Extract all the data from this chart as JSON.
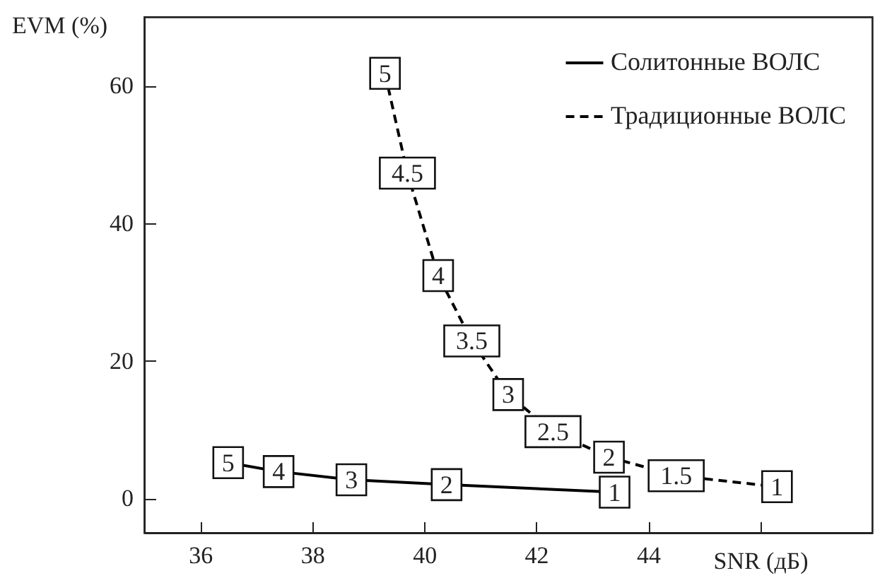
{
  "chart_data": {
    "type": "line",
    "xlabel": "SNR (дБ)",
    "ylabel": "EVM (%)",
    "xlim": [
      35,
      48
    ],
    "ylim": [
      -5,
      70
    ],
    "xticks": [
      36,
      38,
      40,
      42,
      44,
      {
        "value": 46,
        "label": null
      }
    ],
    "yticks": [
      0,
      20,
      40,
      60
    ],
    "grid": false,
    "legend": "top right",
    "marker": "square",
    "series": [
      {
        "name": "Солитонные ВОЛС",
        "color": "#000000",
        "line_style": "solid",
        "x": [
          36.5,
          37.4,
          38.7,
          40.4,
          43.4
        ],
        "values": [
          5.2,
          3.9,
          2.7,
          2.0,
          0.9
        ]
      },
      {
        "name": "Традиционные ВОЛС",
        "color": "#000000",
        "line_style": "dashed",
        "x": [
          39.3,
          39.7,
          40.25,
          40.85,
          41.5,
          42.3,
          43.3,
          44.5,
          46.3
        ],
        "values": [
          61.8,
          47.3,
          32.4,
          22.9,
          15.1,
          9.7,
          6.0,
          3.3,
          1.7
        ]
      }
    ],
    "annotations": [
      {
        "text": "5",
        "x": 36.5,
        "y": 5.2
      },
      {
        "text": "4",
        "x": 37.4,
        "y": 3.9
      },
      {
        "text": "3",
        "x": 38.7,
        "y": 2.7
      },
      {
        "text": "2",
        "x": 40.4,
        "y": 2.0
      },
      {
        "text": "1",
        "x": 43.4,
        "y": 0.9
      },
      {
        "text": "5",
        "x": 39.3,
        "y": 61.8
      },
      {
        "text": "4.5",
        "x": 39.7,
        "y": 47.3
      },
      {
        "text": "4",
        "x": 40.25,
        "y": 32.4
      },
      {
        "text": "3.5",
        "x": 40.85,
        "y": 22.9
      },
      {
        "text": "3",
        "x": 41.5,
        "y": 15.1
      },
      {
        "text": "2.5",
        "x": 42.3,
        "y": 9.7
      },
      {
        "text": "2",
        "x": 43.3,
        "y": 6.0
      },
      {
        "text": "1.5",
        "x": 44.5,
        "y": 3.3
      },
      {
        "text": "1",
        "x": 46.3,
        "y": 1.7
      }
    ]
  }
}
